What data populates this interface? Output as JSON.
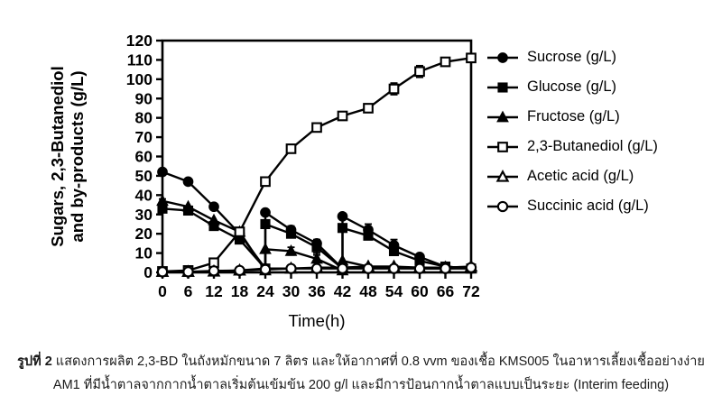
{
  "figure": {
    "background": "#ffffff",
    "ink_color": "#000000"
  },
  "chart_data": {
    "type": "line",
    "title": "",
    "xlabel": "Time(h)",
    "ylabel_lines": [
      "Sugars, 2,3-Butanediol",
      "and by-products (g/L)"
    ],
    "xlim": [
      0,
      72
    ],
    "ylim": [
      0,
      120
    ],
    "xticks": [
      0,
      6,
      12,
      18,
      24,
      30,
      36,
      42,
      48,
      54,
      60,
      66,
      72
    ],
    "yticks": [
      0,
      10,
      20,
      30,
      40,
      50,
      60,
      70,
      80,
      90,
      100,
      110,
      120
    ],
    "grid": false,
    "frame": "full-box",
    "legend_position": "right-outside",
    "feed_times_h": [
      24,
      42
    ],
    "series": [
      {
        "name": "Sucrose (g/L)",
        "marker": "circle",
        "marker_fill": "filled",
        "x": [
          0,
          6,
          12,
          18,
          24,
          24,
          30,
          36,
          42,
          42,
          48,
          54,
          60,
          66,
          72
        ],
        "y": [
          52,
          47,
          34,
          20,
          2,
          31,
          22,
          15,
          2,
          29,
          22,
          14,
          8,
          3,
          2
        ],
        "err": [
          1,
          1,
          0,
          0,
          0,
          0,
          2,
          2,
          0,
          0,
          3,
          3,
          1,
          0,
          1
        ]
      },
      {
        "name": "Glucose (g/L)",
        "marker": "square",
        "marker_fill": "filled",
        "x": [
          0,
          6,
          12,
          18,
          24,
          24,
          30,
          36,
          42,
          42,
          48,
          54,
          60,
          66,
          72
        ],
        "y": [
          33,
          32,
          24,
          17,
          2,
          25,
          20,
          13,
          2,
          23,
          19,
          11,
          6,
          3,
          2
        ],
        "err": [
          1,
          1,
          0,
          0,
          0,
          0,
          2,
          3,
          0,
          0,
          2,
          2,
          1,
          0,
          1
        ]
      },
      {
        "name": "Fructose (g/L)",
        "marker": "triangle",
        "marker_fill": "filled",
        "x": [
          0,
          6,
          12,
          18,
          24,
          24,
          30,
          36,
          42,
          42,
          48,
          54,
          60,
          66,
          72
        ],
        "y": [
          37,
          34,
          27,
          21,
          1,
          12,
          11,
          7,
          1,
          6,
          3,
          3,
          2,
          2,
          2
        ],
        "err": [
          1,
          0,
          0,
          0,
          0,
          0,
          2,
          2,
          0,
          0,
          0,
          0,
          0,
          0,
          0
        ]
      },
      {
        "name": "2,3-Butanediol (g/L)",
        "marker": "square",
        "marker_fill": "open",
        "x": [
          0,
          6,
          12,
          18,
          24,
          30,
          36,
          42,
          48,
          54,
          60,
          66,
          72
        ],
        "y": [
          0.5,
          1,
          5,
          21,
          47,
          64,
          75,
          81,
          85,
          95,
          104,
          109,
          111
        ],
        "err": [
          0,
          0,
          0,
          2,
          0,
          2,
          2,
          2,
          2,
          3,
          3,
          2,
          2
        ]
      },
      {
        "name": "Acetic acid (g/L)",
        "marker": "triangle",
        "marker_fill": "open",
        "x": [
          0,
          6,
          12,
          18,
          24,
          30,
          36,
          42,
          48,
          54,
          60,
          66,
          72
        ],
        "y": [
          0.3,
          0.3,
          0.5,
          1,
          2,
          2,
          2.5,
          2.5,
          3,
          3,
          2.5,
          2.5,
          3
        ],
        "err": [
          0,
          0,
          0,
          0,
          1,
          0,
          1,
          0,
          1,
          0,
          0,
          0,
          1
        ]
      },
      {
        "name": "Succinic acid (g/L)",
        "marker": "circle",
        "marker_fill": "open",
        "x": [
          0,
          6,
          12,
          18,
          24,
          30,
          36,
          42,
          48,
          54,
          60,
          66,
          72
        ],
        "y": [
          0.3,
          0.3,
          0.8,
          1,
          1.5,
          2,
          2,
          2,
          2,
          2,
          2,
          2,
          2.5
        ],
        "err": [
          0,
          0,
          0,
          0,
          0,
          0,
          0,
          1,
          0,
          0,
          0,
          0,
          1
        ]
      }
    ]
  },
  "caption": {
    "prefix": "รูปที่ 2",
    "line1": " แสดงการผลิต 2,3-BD ในถังหมักขนาด 7 ลิตร และให้อากาศที่ 0.8 vvm ของเชื้อ KMS005 ในอาหารเลี้ยงเชื้ออย่างง่าย",
    "line2": "AM1 ที่มีน้ำตาลจากกากน้ำตาลเริ่มต้นเข้มข้น 200 g/l และมีการป้อนกากน้ำตาลแบบเป็นระยะ (Interim feeding)"
  }
}
